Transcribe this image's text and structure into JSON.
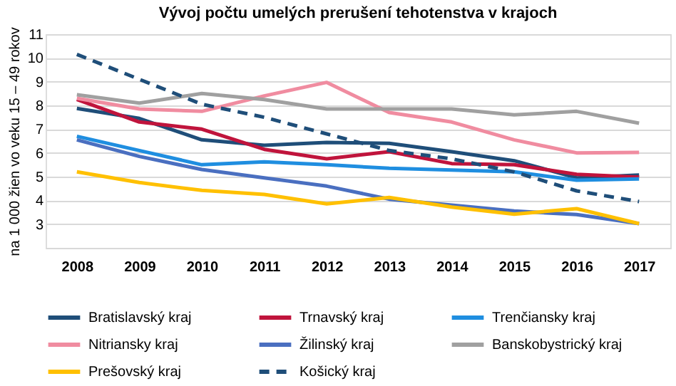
{
  "chart_data": {
    "type": "line",
    "title": "Vývoj počtu umelých prerušení tehotenstva v krajoch",
    "ylabel": "na 1 000 žien vo veku 15 – 49 rokov",
    "categories": [
      "2008",
      "2009",
      "2010",
      "2011",
      "2012",
      "2013",
      "2014",
      "2015",
      "2016",
      "2017"
    ],
    "ylim": [
      2,
      11
    ],
    "yticks": [
      {
        "value": 2,
        "label": null
      },
      3,
      4,
      5,
      6,
      7,
      8,
      9,
      10,
      11
    ],
    "grid": "y",
    "legend": "bottom",
    "marker": "none",
    "series": [
      {
        "name": "Bratislavský kraj",
        "color": "#1f4e79",
        "values": [
          7.87,
          7.45,
          6.55,
          6.32,
          6.44,
          6.4,
          6.05,
          5.67,
          4.95,
          5.07
        ]
      },
      {
        "name": "Trnavský kraj",
        "color": "#c0143c",
        "values": [
          8.25,
          7.3,
          7.0,
          6.15,
          5.75,
          6.05,
          5.55,
          5.5,
          5.1,
          4.98
        ]
      },
      {
        "name": "Trenčiansky kraj",
        "color": "#1f8ee0",
        "values": [
          6.7,
          6.1,
          5.5,
          5.62,
          5.5,
          5.35,
          5.28,
          5.2,
          4.85,
          4.9
        ]
      },
      {
        "name": "Nitriansky kraj",
        "color": "#f08ca0",
        "values": [
          8.3,
          7.85,
          7.75,
          8.4,
          8.97,
          7.7,
          7.3,
          6.55,
          6.0,
          6.02
        ]
      },
      {
        "name": "Žilinský kraj",
        "color": "#4a6fc0",
        "values": [
          6.55,
          5.85,
          5.3,
          4.95,
          4.6,
          4.05,
          3.8,
          3.55,
          3.4,
          3.02
        ]
      },
      {
        "name": "Banskobystrický kraj",
        "color": "#a0a0a0",
        "values": [
          8.45,
          8.1,
          8.5,
          8.25,
          7.85,
          7.85,
          7.85,
          7.6,
          7.75,
          7.25
        ]
      },
      {
        "name": "Prešovský kraj",
        "color": "#ffc000",
        "values": [
          5.2,
          4.75,
          4.42,
          4.25,
          3.85,
          4.12,
          3.72,
          3.42,
          3.65,
          3.02
        ]
      },
      {
        "name": "Košický kraj",
        "color": "#1f4e79",
        "line_style": "dashed",
        "values": [
          10.15,
          9.1,
          8.05,
          7.5,
          6.8,
          6.1,
          5.75,
          5.2,
          4.4,
          3.95
        ]
      }
    ]
  }
}
